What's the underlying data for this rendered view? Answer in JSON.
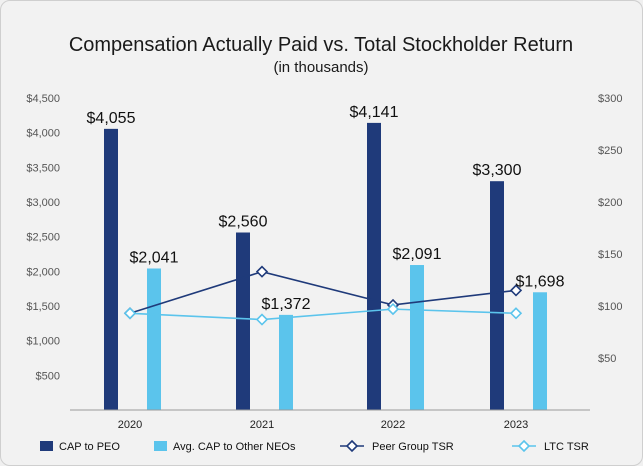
{
  "chart_data": {
    "type": "bar",
    "title": "Compensation Actually Paid vs. Total Stockholder Return",
    "subtitle": "(in thousands)",
    "categories": [
      "2020",
      "2021",
      "2022",
      "2023"
    ],
    "ylim": [
      0,
      4500
    ],
    "y_ticks": [
      500,
      1000,
      1500,
      2000,
      2500,
      3000,
      3500,
      4000,
      4500
    ],
    "y_tick_labels": [
      "$500",
      "$1,000",
      "$1,500",
      "$2,000",
      "$2,500",
      "$3,000",
      "$3,500",
      "$4,000",
      "$4,500"
    ],
    "y2lim": [
      0,
      300
    ],
    "y2_ticks": [
      50,
      100,
      150,
      200,
      250,
      300
    ],
    "y2_tick_labels": [
      "$50",
      "$100",
      "$150",
      "$200",
      "$250",
      "$300"
    ],
    "series": [
      {
        "name": "CAP to PEO",
        "type": "bar",
        "axis": "left",
        "color": "#1f3a7a",
        "values": [
          4055,
          2560,
          4141,
          3300
        ],
        "labels": [
          "$4,055",
          "$2,560",
          "$4,141",
          "$3,300"
        ]
      },
      {
        "name": "Avg. CAP to Other NEOs",
        "type": "bar",
        "axis": "left",
        "color": "#5bc4ec",
        "values": [
          2041,
          1372,
          2091,
          1698
        ],
        "labels": [
          "$2,041",
          "$1,372",
          "$2,091",
          "$1,698"
        ]
      },
      {
        "name": "Peer Group TSR",
        "type": "line",
        "axis": "right",
        "color": "#1f3a7a",
        "values": [
          93,
          133,
          101,
          115
        ]
      },
      {
        "name": "LTC TSR",
        "type": "line",
        "axis": "right",
        "color": "#5bc4ec",
        "values": [
          93,
          87,
          97,
          93
        ]
      }
    ],
    "legend_position": "bottom"
  }
}
